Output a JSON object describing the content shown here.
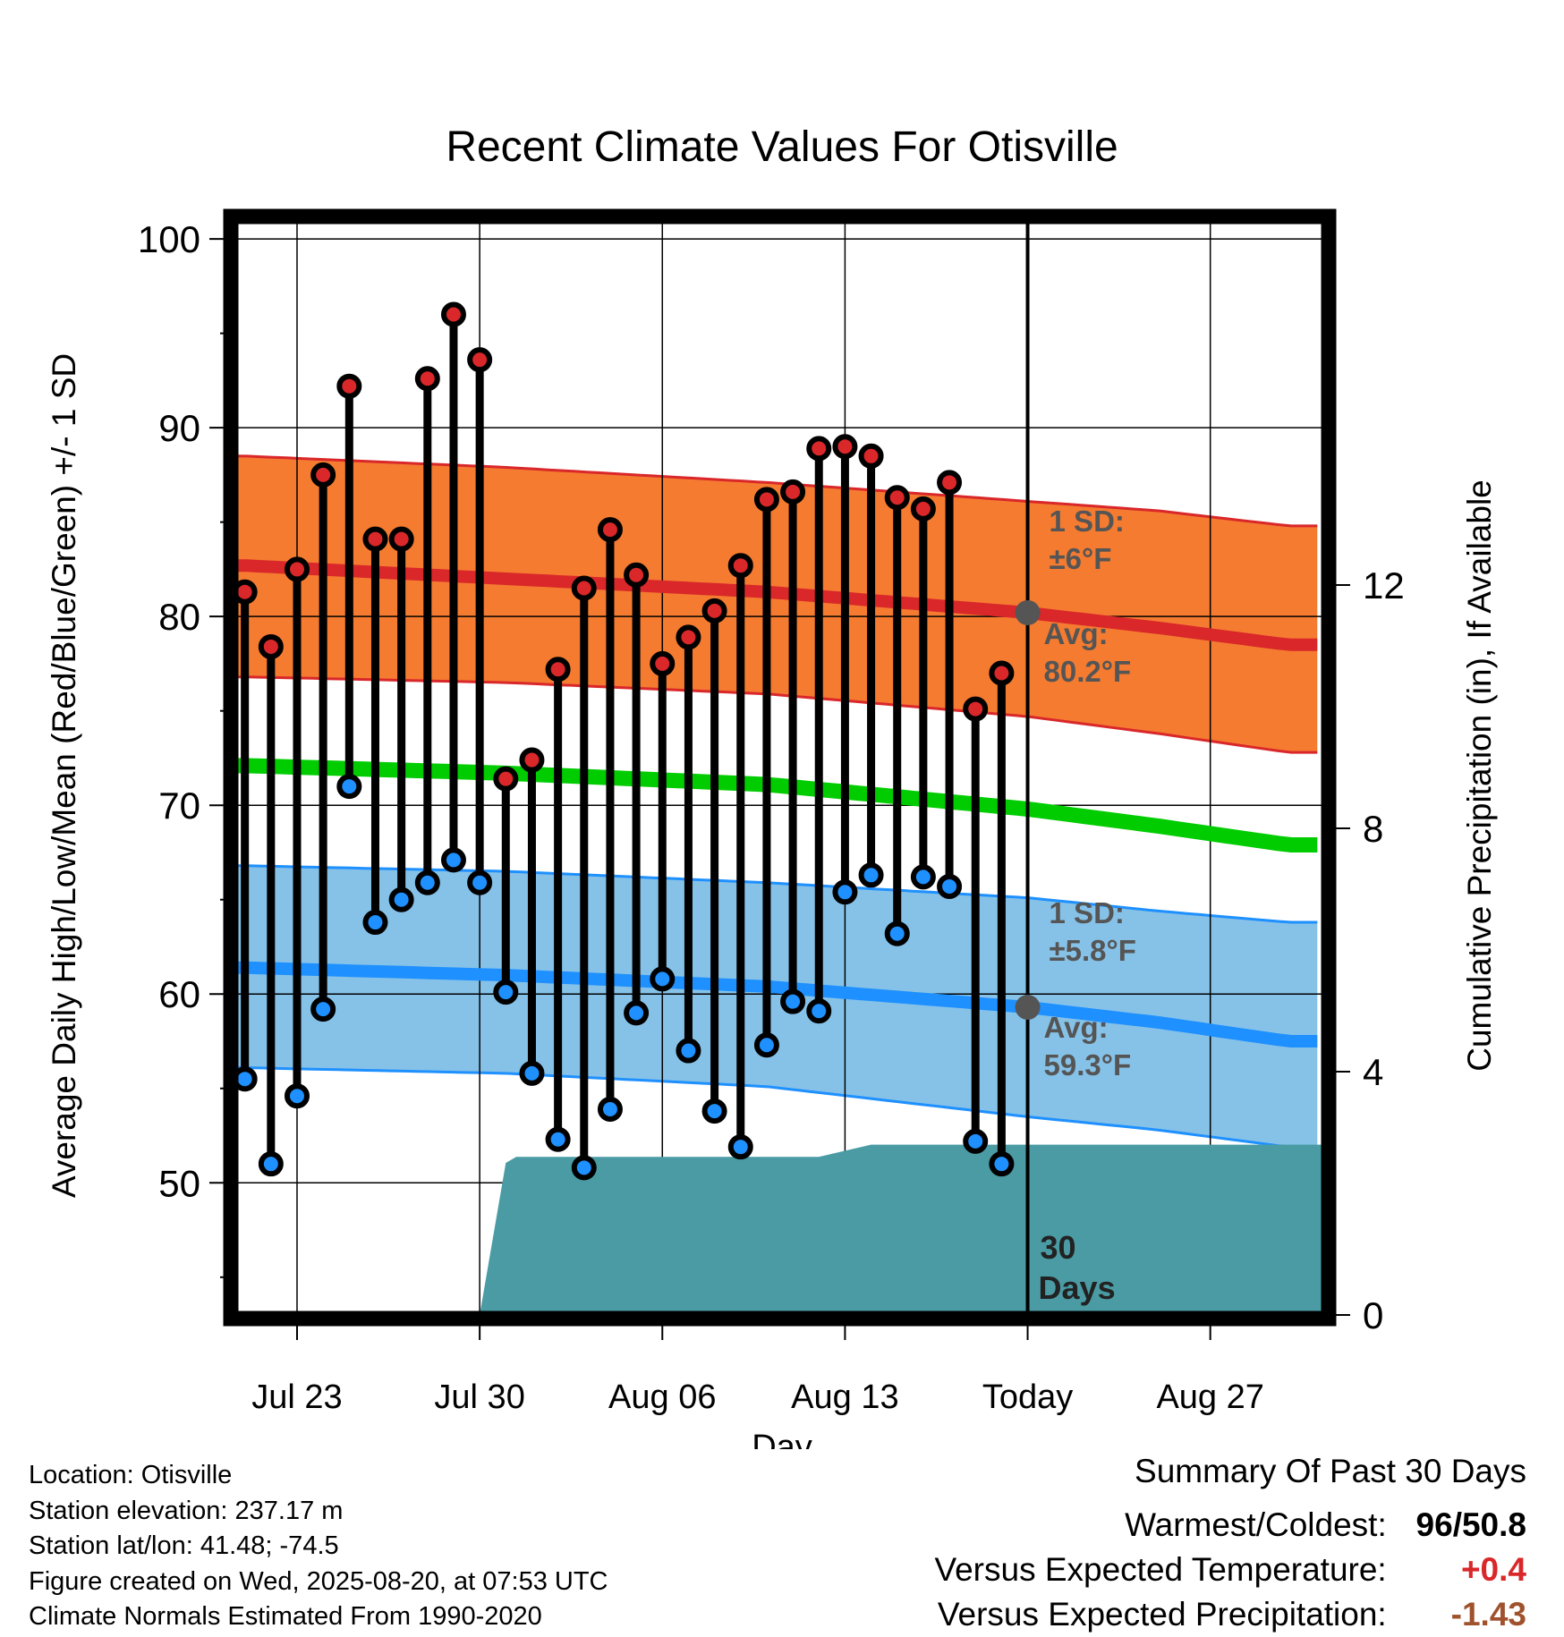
{
  "chart_data": {
    "type": "line",
    "title": "Recent Climate Values For Otisville",
    "xlabel": "Day",
    "ylabel": "Average Daily High/Low/Mean (Red/Blue/Green) +/- 1 SD",
    "y2label": "Cumulative Precipitation (in), If Available",
    "ylim": [
      43,
      101
    ],
    "y_ticks": [
      50,
      60,
      70,
      80,
      90,
      100
    ],
    "y2lim": [
      0,
      18
    ],
    "y2_ticks": [
      0,
      4,
      8,
      12
    ],
    "x_range_days": [
      -30.4,
      11.4
    ],
    "x_ticks": [
      {
        "day": -28,
        "label": "Jul 23"
      },
      {
        "day": -21,
        "label": "Jul 30"
      },
      {
        "day": -14,
        "label": "Aug 06"
      },
      {
        "day": -7,
        "label": "Aug 13"
      },
      {
        "day": 0,
        "label": "Today"
      },
      {
        "day": 7,
        "label": "Aug 27"
      }
    ],
    "today_label": [
      "30",
      "Days"
    ],
    "grid": true,
    "daily_high": [
      81.3,
      78.4,
      82.5,
      87.5,
      92.2,
      84.1,
      84.1,
      92.6,
      96.0,
      93.6,
      71.4,
      72.4,
      77.2,
      81.5,
      84.6,
      82.2,
      77.5,
      78.9,
      80.3,
      82.7,
      86.2,
      86.6,
      88.9,
      89.0,
      88.5,
      86.3,
      85.7,
      87.1,
      75.1,
      77.0
    ],
    "daily_low": [
      55.5,
      51.0,
      54.6,
      59.2,
      71.0,
      63.8,
      65.0,
      65.9,
      67.1,
      65.9,
      60.1,
      55.8,
      52.3,
      50.8,
      53.9,
      59.0,
      60.8,
      57.0,
      53.8,
      51.9,
      57.3,
      59.6,
      59.1,
      65.4,
      66.3,
      63.2,
      66.2,
      65.7,
      52.2,
      51.0
    ],
    "normals": {
      "days": [
        -30,
        -20,
        -10,
        0,
        5,
        10
      ],
      "high_avg": [
        82.7,
        82.0,
        81.3,
        80.2,
        79.4,
        78.5
      ],
      "high_upper": [
        88.5,
        87.9,
        87.1,
        86.1,
        85.6,
        84.8
      ],
      "high_lower": [
        76.8,
        76.5,
        75.9,
        74.7,
        73.8,
        72.8
      ],
      "mean_avg": [
        72.1,
        71.7,
        71.1,
        69.8,
        68.9,
        67.9
      ],
      "low_avg": [
        61.4,
        61.0,
        60.4,
        59.3,
        58.5,
        57.5
      ],
      "low_upper": [
        66.8,
        66.5,
        65.9,
        65.1,
        64.4,
        63.8
      ],
      "low_lower": [
        56.1,
        55.8,
        55.1,
        53.5,
        52.8,
        51.9
      ]
    },
    "precip_cumulative": {
      "days": [
        -30.4,
        -21.0,
        -20.0,
        -19.6,
        -8.0,
        -6.0,
        -3.0,
        0.0,
        11.4
      ],
      "values": [
        0,
        0,
        2.5,
        2.6,
        2.6,
        2.8,
        2.8,
        2.8,
        2.8
      ]
    },
    "annotations": {
      "high": {
        "sd_label": "1 SD:",
        "sd_value": "±6",
        "avg_label": "Avg:",
        "avg_value": "80.2",
        "unit": "°F",
        "today_value": 80.2
      },
      "low": {
        "sd_label": "1 SD:",
        "sd_value": "±5.8",
        "avg_label": "Avg:",
        "avg_value": "59.3",
        "unit": "°F",
        "today_value": 59.3
      }
    },
    "colors": {
      "high_band": "#F47B30",
      "high_line": "#D9272A",
      "mean_line": "#00CC00",
      "low_band": "#86C2E8",
      "low_line": "#1E90FF",
      "precip": "#4A9BA4",
      "high_dot": "#D9272A",
      "low_dot": "#1E90FF",
      "annotation": "#555555"
    }
  },
  "footer": {
    "location": "Location: Otisville",
    "elevation": "Station elevation: 237.17 m",
    "latlon": "Station lat/lon: 41.48; -74.5",
    "created": "Figure created on Wed, 2025-08-20, at 07:53 UTC",
    "normals": "Climate Normals Estimated From 1990-2020"
  },
  "summary": {
    "title": "Summary Of Past 30 Days",
    "warmest_label": "Warmest/Coldest:",
    "warmest_value": "96",
    "coldest_value": "50.8",
    "temp_label": "Versus Expected Temperature:",
    "temp_value": "+0.4",
    "temp_color": "#D9272A",
    "precip_label": "Versus Expected Precipitation:",
    "precip_value": "-1.43",
    "precip_color": "#A0522D"
  }
}
